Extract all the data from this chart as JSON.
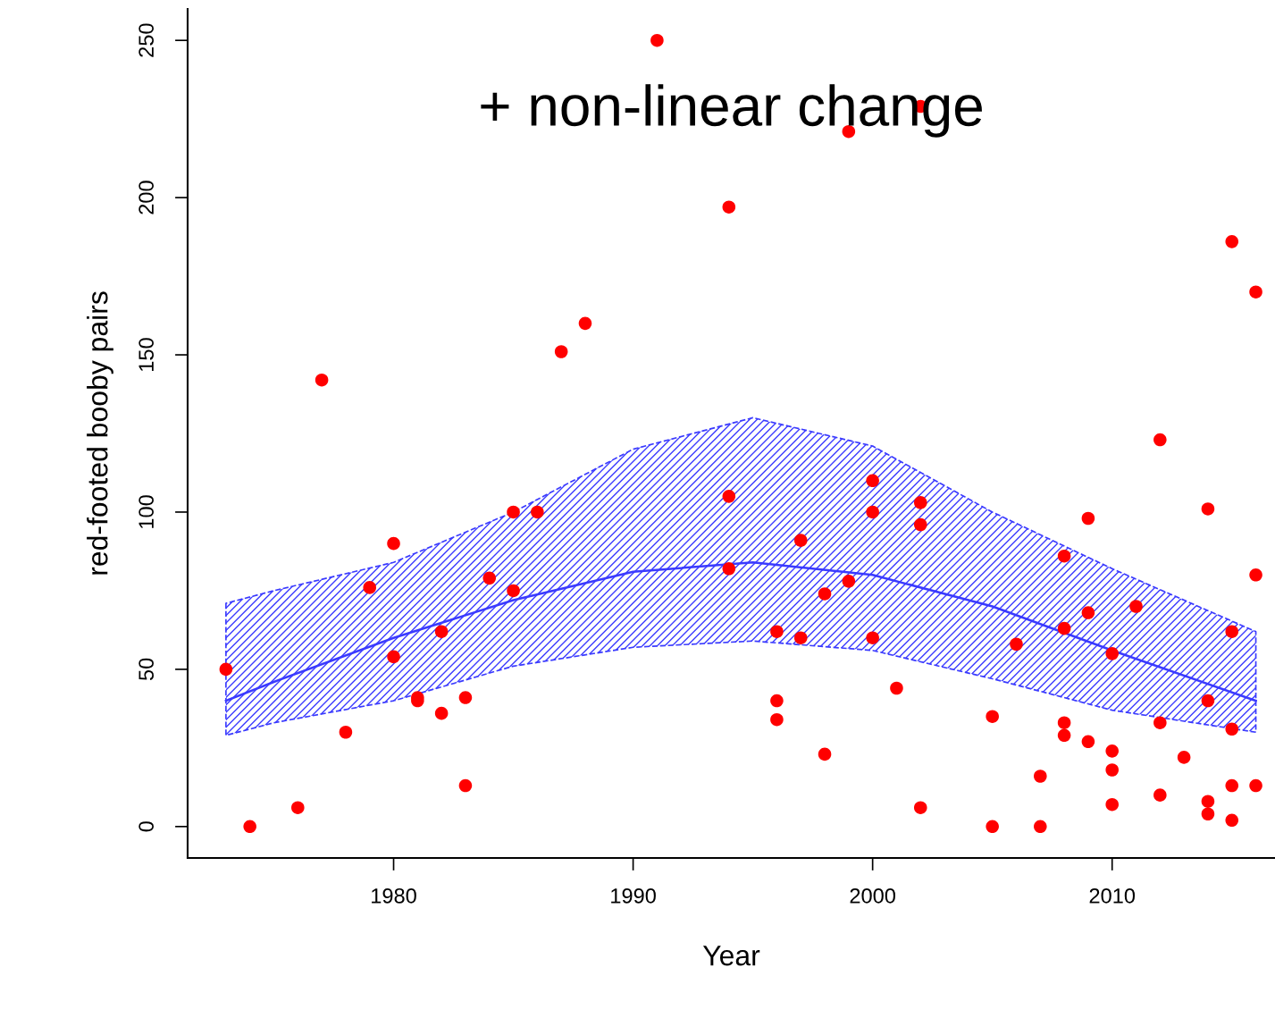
{
  "chart_data": {
    "type": "scatter",
    "xlabel": "Year",
    "ylabel": "red-footed booby pairs",
    "annotations": [
      "+ non-linear change"
    ],
    "xlim": [
      1971.4,
      2016.8
    ],
    "xticks": [
      1980,
      1990,
      2000,
      2010
    ],
    "ylim": [
      -10,
      260
    ],
    "yticks": [
      0,
      50,
      100,
      150,
      200,
      250
    ],
    "grid": false,
    "legend": false,
    "series": [
      {
        "color": "#ff0000",
        "marker": "circle",
        "x": [
          1973,
          1974,
          1976,
          1977,
          1978,
          1979,
          1980,
          1980,
          1981,
          1981,
          1982,
          1982,
          1983,
          1983,
          1984,
          1985,
          1985,
          1986,
          1987,
          1988,
          1991,
          1994,
          1994,
          1994,
          1996,
          1996,
          1996,
          1997,
          1997,
          1998,
          1998,
          1999,
          1999,
          2000,
          2000,
          2000,
          2001,
          2002,
          2002,
          2002,
          2002,
          2005,
          2005,
          2006,
          2007,
          2007,
          2008,
          2008,
          2008,
          2008,
          2009,
          2009,
          2009,
          2010,
          2010,
          2010,
          2010,
          2011,
          2012,
          2012,
          2012,
          2013,
          2014,
          2014,
          2014,
          2014,
          2015,
          2015,
          2015,
          2015,
          2015,
          2016,
          2016,
          2016
        ],
        "values": [
          50,
          0,
          6,
          142,
          30,
          76,
          90,
          54,
          41,
          40,
          62,
          36,
          41,
          13,
          79,
          100,
          75,
          100,
          151,
          160,
          250,
          197,
          105,
          82,
          62,
          40,
          34,
          91,
          60,
          74,
          23,
          221,
          78,
          110,
          100,
          60,
          44,
          229,
          103,
          96,
          6,
          35,
          0,
          58,
          16,
          0,
          86,
          63,
          33,
          29,
          98,
          68,
          27,
          55,
          24,
          18,
          7,
          70,
          123,
          33,
          10,
          22,
          101,
          40,
          8,
          4,
          186,
          62,
          31,
          13,
          2,
          170,
          80,
          13
        ]
      },
      {
        "type": "line",
        "color": "#3a3aff",
        "line_style": "solid",
        "x": [
          1973,
          1975,
          1980,
          1985,
          1990,
          1995,
          2000,
          2005,
          2010,
          2016
        ],
        "values": [
          40,
          46,
          60,
          72,
          81,
          84,
          80,
          70,
          56,
          40
        ],
        "lower": [
          29,
          33,
          40,
          51,
          57,
          59,
          56,
          47,
          37,
          30
        ],
        "upper": [
          71,
          75,
          84,
          100,
          120,
          130,
          121,
          100,
          82,
          62
        ]
      }
    ]
  }
}
